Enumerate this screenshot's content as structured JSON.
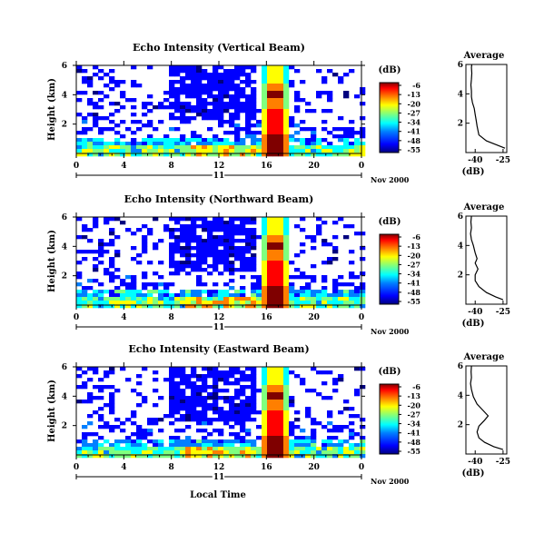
{
  "figure": {
    "xlabel": "Local Time",
    "date_label": "Nov 2000",
    "day_label": "11",
    "colorbar_unit": "(dB)",
    "colorbar_ticks": [
      "-6",
      "-13",
      "-20",
      "-27",
      "-34",
      "-41",
      "-48",
      "-55"
    ],
    "colormap": [
      "#00007f",
      "#0000ff",
      "#007fff",
      "#00ffff",
      "#7fff7f",
      "#ffff00",
      "#ff7f00",
      "#ff0000",
      "#7f0000"
    ]
  },
  "chart_data": [
    {
      "type": "heatmap",
      "title": "Echo Intensity (Vertical Beam)",
      "ylabel": "Height (km)",
      "xlabel": "Local Time",
      "x_ticks": [
        "0",
        "4",
        "8",
        "12",
        "16",
        "20",
        "0"
      ],
      "x_range": [
        0,
        24
      ],
      "y_ticks": [
        "2",
        "4",
        "6"
      ],
      "y_range": [
        0,
        6
      ],
      "colorbar": {
        "label": "(dB)",
        "range": [
          -55,
          -6
        ],
        "ticks": [
          -6,
          -13,
          -20,
          -27,
          -34,
          -41,
          -48,
          -55
        ]
      }
    },
    {
      "type": "line",
      "title": "Average",
      "xlabel": "(dB)",
      "x_ticks": [
        "-40",
        "-25"
      ],
      "xlim": [
        -45,
        -23
      ],
      "y_ticks": [
        "2",
        "4",
        "6"
      ],
      "ylim": [
        0,
        6
      ],
      "x": [
        -24,
        -28,
        -34,
        -38,
        -39,
        -39.5,
        -40,
        -40.5,
        -41.5,
        -42,
        -42,
        -42.3,
        -42,
        -41.8,
        -42,
        -41.8
      ],
      "y": [
        0.3,
        0.5,
        0.8,
        1.2,
        1.8,
        2.2,
        2.6,
        3.0,
        3.4,
        3.8,
        4.2,
        4.6,
        5.0,
        5.4,
        5.8,
        6.0
      ]
    },
    {
      "type": "heatmap",
      "title": "Echo Intensity (Northward Beam)",
      "ylabel": "Height (km)",
      "xlabel": "Local Time",
      "x_ticks": [
        "0",
        "4",
        "8",
        "12",
        "16",
        "20",
        "0"
      ],
      "x_range": [
        0,
        24
      ],
      "y_ticks": [
        "2",
        "4",
        "6"
      ],
      "y_range": [
        0,
        6
      ],
      "colorbar": {
        "label": "(dB)",
        "range": [
          -55,
          -6
        ],
        "ticks": [
          -6,
          -13,
          -20,
          -27,
          -34,
          -41,
          -48,
          -55
        ]
      }
    },
    {
      "type": "line",
      "title": "Average",
      "xlabel": "(dB)",
      "x_ticks": [
        "-40",
        "-25"
      ],
      "xlim": [
        -45,
        -23
      ],
      "y_ticks": [
        "2",
        "4",
        "6"
      ],
      "ylim": [
        0,
        6
      ],
      "x": [
        -25,
        -29,
        -34,
        -38,
        -40,
        -40,
        -38.5,
        -40,
        -39,
        -40,
        -41,
        -42,
        -42.5,
        -42,
        -42.3,
        -42
      ],
      "y": [
        0.3,
        0.5,
        0.8,
        1.2,
        1.6,
        2.0,
        2.4,
        2.8,
        3.1,
        3.5,
        4.0,
        4.4,
        4.8,
        5.2,
        5.6,
        6.0
      ]
    },
    {
      "type": "heatmap",
      "title": "Echo Intensity (Eastward Beam)",
      "ylabel": "Height (km)",
      "xlabel": "Local Time",
      "x_ticks": [
        "0",
        "4",
        "8",
        "12",
        "16",
        "20",
        "0"
      ],
      "x_range": [
        0,
        24
      ],
      "y_ticks": [
        "2",
        "4",
        "6"
      ],
      "y_range": [
        0,
        6
      ],
      "colorbar": {
        "label": "(dB)",
        "range": [
          -55,
          -6
        ],
        "ticks": [
          -6,
          -13,
          -20,
          -27,
          -34,
          -41,
          -48,
          -55
        ]
      }
    },
    {
      "type": "line",
      "title": "Average",
      "xlabel": "(dB)",
      "x_ticks": [
        "-40",
        "-25"
      ],
      "xlim": [
        -45,
        -23
      ],
      "y_ticks": [
        "2",
        "4",
        "6"
      ],
      "ylim": [
        0,
        6
      ],
      "x": [
        -25,
        -30,
        -35,
        -38,
        -39,
        -38,
        -35,
        -33,
        -36,
        -39,
        -41,
        -42,
        -42.5,
        -42,
        -42.2,
        -42
      ],
      "y": [
        0.3,
        0.5,
        0.8,
        1.1,
        1.5,
        1.9,
        2.3,
        2.6,
        3.0,
        3.4,
        3.9,
        4.4,
        4.8,
        5.2,
        5.6,
        6.0
      ]
    }
  ]
}
